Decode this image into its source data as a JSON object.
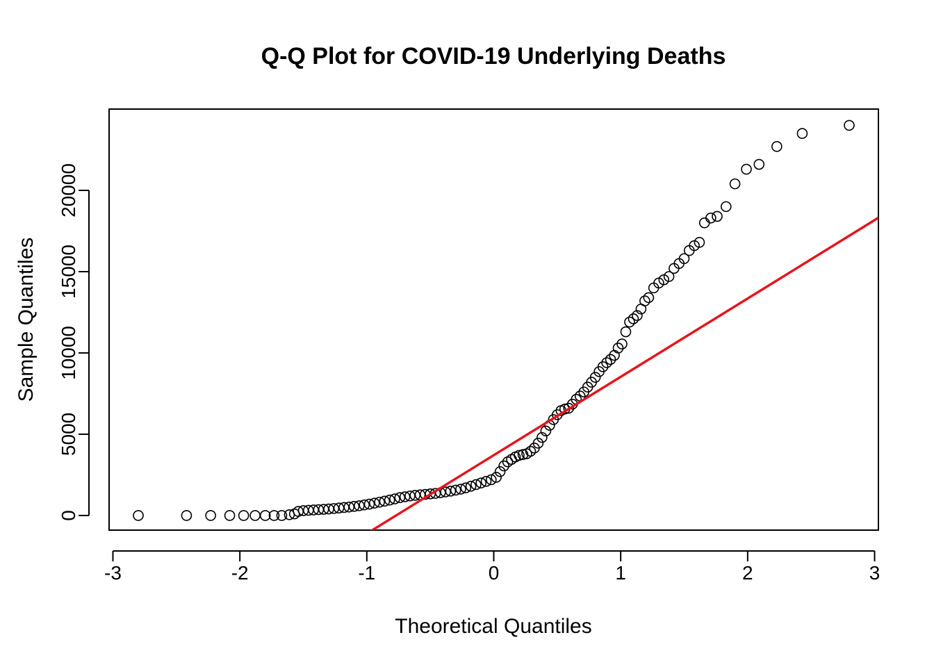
{
  "chart_data": {
    "type": "scatter",
    "title": "Q-Q Plot for COVID-19 Underlying Deaths",
    "xlabel": "Theoretical Quantiles",
    "ylabel": "Sample Quantiles",
    "xlim": [
      -3.03,
      3.03
    ],
    "ylim": [
      -900,
      25000
    ],
    "x_ticks": [
      -3,
      -2,
      -1,
      0,
      1,
      2,
      3
    ],
    "x_tick_labels": [
      "-3",
      "-2",
      "-1",
      "0",
      "1",
      "2",
      "3"
    ],
    "y_ticks": [
      0,
      5000,
      10000,
      15000,
      20000
    ],
    "y_tick_labels": [
      "0",
      "5000",
      "10000",
      "15000",
      "20000"
    ],
    "grid": false,
    "point_style": "open-circle",
    "point_color": "#000000",
    "line_color": "#e8141b",
    "reference_line": {
      "slope": 4820,
      "intercept": 3710
    },
    "points": [
      [
        -2.8,
        0
      ],
      [
        -2.42,
        0
      ],
      [
        -2.23,
        0
      ],
      [
        -2.08,
        0
      ],
      [
        -1.97,
        0
      ],
      [
        -1.88,
        0
      ],
      [
        -1.8,
        0
      ],
      [
        -1.73,
        0
      ],
      [
        -1.67,
        0
      ],
      [
        -1.61,
        50
      ],
      [
        -1.57,
        100
      ],
      [
        -1.54,
        250
      ],
      [
        -1.5,
        300
      ],
      [
        -1.46,
        320
      ],
      [
        -1.42,
        340
      ],
      [
        -1.38,
        360
      ],
      [
        -1.34,
        380
      ],
      [
        -1.3,
        400
      ],
      [
        -1.26,
        430
      ],
      [
        -1.22,
        460
      ],
      [
        -1.18,
        490
      ],
      [
        -1.14,
        520
      ],
      [
        -1.1,
        560
      ],
      [
        -1.06,
        600
      ],
      [
        -1.02,
        650
      ],
      [
        -0.98,
        700
      ],
      [
        -0.94,
        760
      ],
      [
        -0.9,
        820
      ],
      [
        -0.86,
        880
      ],
      [
        -0.82,
        950
      ],
      [
        -0.78,
        1020
      ],
      [
        -0.74,
        1100
      ],
      [
        -0.7,
        1150
      ],
      [
        -0.66,
        1200
      ],
      [
        -0.62,
        1240
      ],
      [
        -0.58,
        1270
      ],
      [
        -0.54,
        1300
      ],
      [
        -0.5,
        1330
      ],
      [
        -0.46,
        1360
      ],
      [
        -0.42,
        1400
      ],
      [
        -0.38,
        1450
      ],
      [
        -0.34,
        1500
      ],
      [
        -0.3,
        1560
      ],
      [
        -0.26,
        1620
      ],
      [
        -0.22,
        1700
      ],
      [
        -0.18,
        1800
      ],
      [
        -0.14,
        1900
      ],
      [
        -0.1,
        2000
      ],
      [
        -0.06,
        2100
      ],
      [
        -0.02,
        2200
      ],
      [
        0.02,
        2350
      ],
      [
        0.05,
        2700
      ],
      [
        0.08,
        3050
      ],
      [
        0.11,
        3300
      ],
      [
        0.14,
        3450
      ],
      [
        0.17,
        3600
      ],
      [
        0.2,
        3700
      ],
      [
        0.23,
        3750
      ],
      [
        0.26,
        3800
      ],
      [
        0.29,
        3950
      ],
      [
        0.32,
        4150
      ],
      [
        0.35,
        4450
      ],
      [
        0.38,
        4800
      ],
      [
        0.41,
        5200
      ],
      [
        0.44,
        5550
      ],
      [
        0.47,
        5900
      ],
      [
        0.5,
        6200
      ],
      [
        0.53,
        6450
      ],
      [
        0.56,
        6550
      ],
      [
        0.59,
        6600
      ],
      [
        0.62,
        6850
      ],
      [
        0.65,
        7150
      ],
      [
        0.68,
        7350
      ],
      [
        0.71,
        7600
      ],
      [
        0.74,
        7900
      ],
      [
        0.77,
        8200
      ],
      [
        0.8,
        8500
      ],
      [
        0.83,
        8850
      ],
      [
        0.86,
        9150
      ],
      [
        0.89,
        9400
      ],
      [
        0.92,
        9600
      ],
      [
        0.95,
        9850
      ],
      [
        0.98,
        10300
      ],
      [
        1.01,
        10550
      ],
      [
        1.04,
        11300
      ],
      [
        1.07,
        11900
      ],
      [
        1.1,
        12100
      ],
      [
        1.13,
        12300
      ],
      [
        1.16,
        12700
      ],
      [
        1.19,
        13200
      ],
      [
        1.22,
        13400
      ],
      [
        1.26,
        14000
      ],
      [
        1.3,
        14300
      ],
      [
        1.34,
        14500
      ],
      [
        1.38,
        14700
      ],
      [
        1.42,
        15200
      ],
      [
        1.46,
        15500
      ],
      [
        1.5,
        15800
      ],
      [
        1.54,
        16300
      ],
      [
        1.58,
        16600
      ],
      [
        1.62,
        16800
      ],
      [
        1.66,
        18000
      ],
      [
        1.71,
        18300
      ],
      [
        1.76,
        18400
      ],
      [
        1.83,
        19000
      ],
      [
        1.9,
        20400
      ],
      [
        1.99,
        21300
      ],
      [
        2.09,
        21600
      ],
      [
        2.23,
        22700
      ],
      [
        2.43,
        23500
      ],
      [
        2.8,
        24000
      ]
    ]
  }
}
